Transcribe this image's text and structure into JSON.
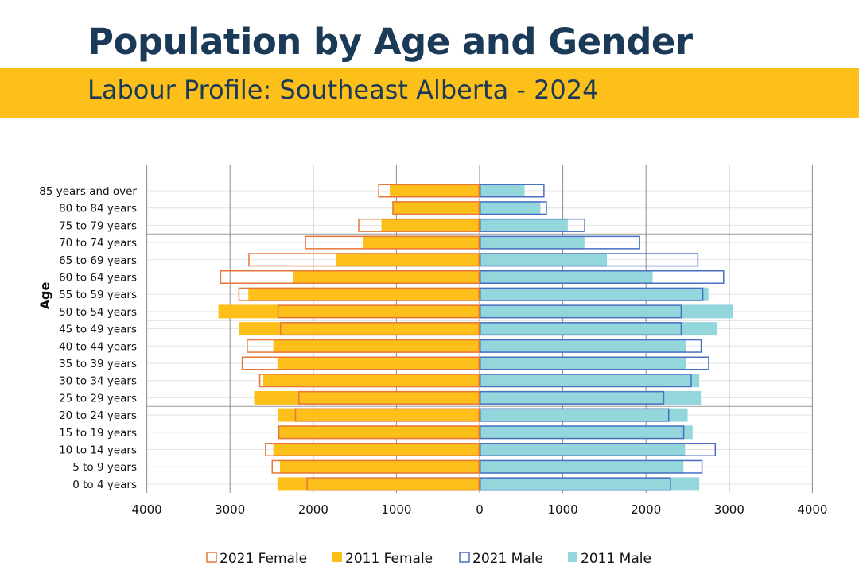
{
  "header": {
    "title": "Population by Age and Gender",
    "subtitle": "Labour Profile:  Southeast Alberta - 2024"
  },
  "colors": {
    "title": "#1b3a57",
    "band": "#fdc01a",
    "female_2011_fill": "#fdc01a",
    "female_2021_outline": "#e8763a",
    "male_2011_fill": "#93d6dc",
    "male_2021_outline": "#4a6fc1",
    "grid": "#8a8a8a"
  },
  "chart_data": {
    "type": "bar",
    "orientation": "horizontal-pyramid",
    "ylabel": "Age",
    "xlabel": "",
    "xlim": [
      -4000,
      4000
    ],
    "x_ticks": [
      -4000,
      -3000,
      -2000,
      -1000,
      0,
      1000,
      2000,
      3000,
      4000
    ],
    "x_tick_labels": [
      "4000",
      "3000",
      "2000",
      "1000",
      "0",
      "1000",
      "2000",
      "3000",
      "4000"
    ],
    "categories": [
      "85 years and over",
      "80 to 84 years",
      "75 to 79 years",
      "70 to 74 years",
      "65 to 69 years",
      "60 to 64 years",
      "55 to 59 years",
      "50 to 54 years",
      "45 to 49 years",
      "40 to 44 years",
      "35 to 39 years",
      "30 to 34 years",
      "25 to 29 years",
      "20 to 24 years",
      "15 to 19 years",
      "10 to 14 years",
      "5 to 9 years",
      "0 to 4 years"
    ],
    "series": [
      {
        "name": "2021 Female",
        "style": "outline",
        "side": "left",
        "values": [
          1220,
          1050,
          1460,
          2100,
          2780,
          3120,
          2900,
          2430,
          2400,
          2800,
          2860,
          2650,
          2180,
          2220,
          2420,
          2580,
          2500,
          2080
        ]
      },
      {
        "name": "2011 Female",
        "style": "fill",
        "side": "left",
        "values": [
          1080,
          1040,
          1180,
          1400,
          1730,
          2240,
          2780,
          3140,
          2890,
          2480,
          2430,
          2600,
          2710,
          2420,
          2410,
          2480,
          2400,
          2430
        ]
      },
      {
        "name": "2021 Male",
        "style": "outline",
        "side": "right",
        "values": [
          780,
          810,
          1270,
          1930,
          2630,
          2940,
          2690,
          2430,
          2430,
          2670,
          2760,
          2550,
          2220,
          2280,
          2460,
          2840,
          2680,
          2300
        ]
      },
      {
        "name": "2011 Male",
        "style": "fill",
        "side": "right",
        "values": [
          540,
          730,
          1060,
          1260,
          1530,
          2080,
          2750,
          3040,
          2850,
          2480,
          2480,
          2640,
          2660,
          2500,
          2560,
          2470,
          2450,
          2640
        ]
      }
    ],
    "legend": [
      "2021 Female",
      "2011 Female",
      "2021 Male",
      "2011 Male"
    ],
    "legend_position": "bottom",
    "grid": true
  }
}
